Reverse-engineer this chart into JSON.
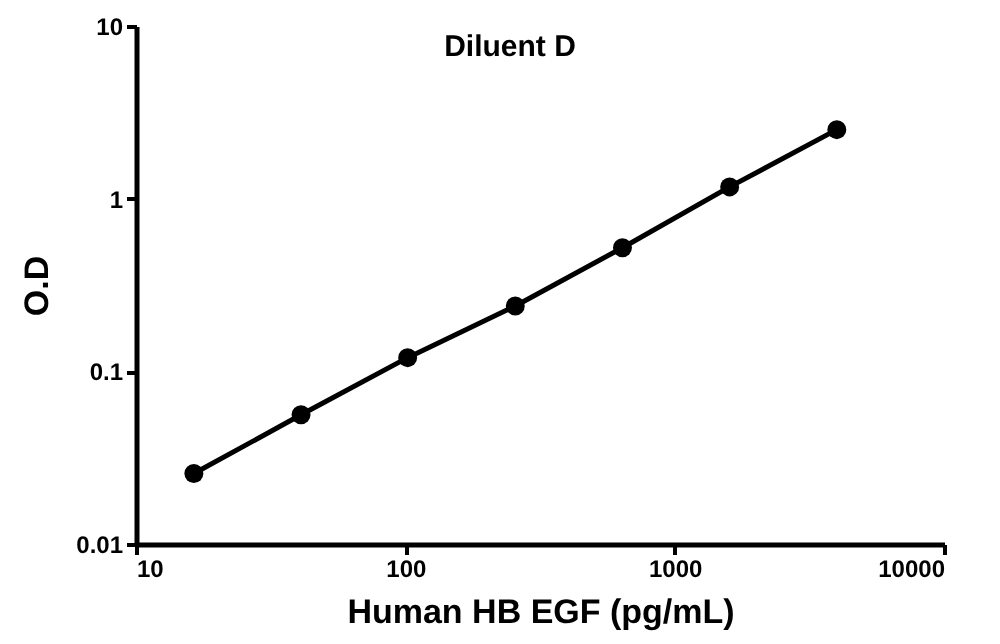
{
  "chart_data": {
    "type": "line",
    "title": "Diluent D",
    "xlabel": "Human HB EGF (pg/mL)",
    "ylabel": "O.D",
    "x": [
      16.4,
      41,
      102,
      256,
      640,
      1600,
      4000
    ],
    "series": [
      {
        "color": "#000000",
        "values": [
          0.0256,
          0.056,
          0.12,
          0.239,
          0.52,
          1.17,
          2.51
        ]
      }
    ],
    "log": "xy",
    "xlim": [
      10,
      10000
    ],
    "xticks": [
      10,
      100,
      1000,
      10000
    ],
    "ylim": [
      0.01,
      10
    ],
    "yticks": [
      0.01,
      0.1,
      1,
      10
    ],
    "grid": false,
    "marker": "circle",
    "line_style": "solid"
  }
}
